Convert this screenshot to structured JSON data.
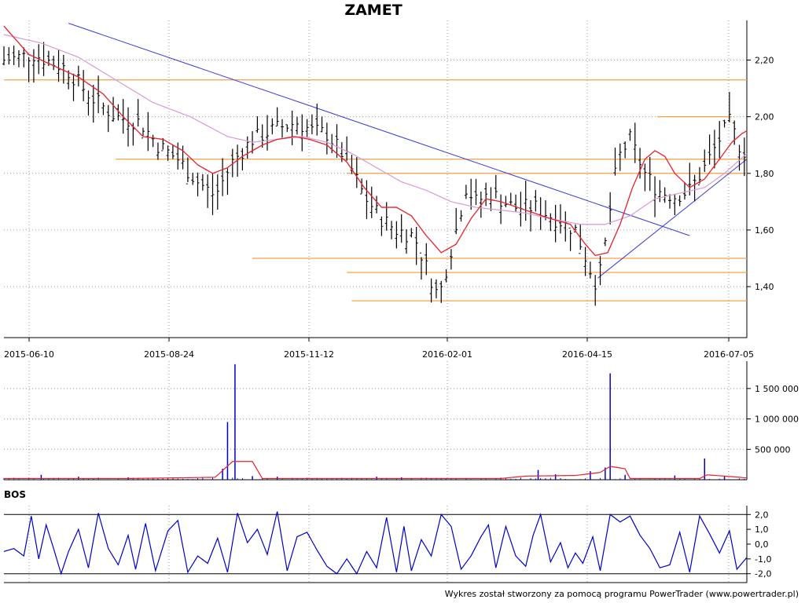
{
  "title": "ZAMET",
  "credit": "Wykres został stworzony za pomocą programu PowerTrader (www.powertrader.pl)",
  "colors": {
    "candle": "#000000",
    "ma_short": "#e8202a",
    "ma_long": "#d79ad7",
    "trend": "#3b3bdb",
    "support": "#f5a04a",
    "volume": "#0000cc",
    "volume_avg": "#e8202a",
    "bos": "#0000cc",
    "grid": "#999999"
  },
  "chart_data": [
    {
      "name": "price",
      "type": "bar",
      "title": "ZAMET",
      "x_tick_labels": [
        "2015-06-10",
        "2015-08-24",
        "2015-11-12",
        "2016-02-01",
        "2016-04-15",
        "2016-07-05"
      ],
      "y_tick_labels": [
        "1,40",
        "1,60",
        "1,80",
        "2,00",
        "2,20"
      ],
      "ylim": [
        1.22,
        2.34
      ],
      "grid": true,
      "series": [
        {
          "name": "close",
          "keypoints": [
            [
              0,
              2.2
            ],
            [
              12,
              2.22
            ],
            [
              25,
              2.17
            ],
            [
              35,
              2.07
            ],
            [
              45,
              2.0
            ],
            [
              55,
              1.98
            ],
            [
              62,
              1.9
            ],
            [
              70,
              1.85
            ],
            [
              78,
              1.77
            ],
            [
              85,
              1.72
            ],
            [
              92,
              1.84
            ],
            [
              100,
              1.92
            ],
            [
              110,
              1.96
            ],
            [
              118,
              1.98
            ],
            [
              124,
              1.95
            ],
            [
              130,
              1.94
            ],
            [
              138,
              1.85
            ],
            [
              145,
              1.72
            ],
            [
              152,
              1.64
            ],
            [
              158,
              1.6
            ],
            [
              165,
              1.58
            ],
            [
              170,
              1.47
            ],
            [
              175,
              1.36
            ],
            [
              182,
              1.6
            ],
            [
              186,
              1.75
            ],
            [
              190,
              1.7
            ],
            [
              196,
              1.73
            ],
            [
              205,
              1.68
            ],
            [
              214,
              1.68
            ],
            [
              222,
              1.64
            ],
            [
              230,
              1.6
            ],
            [
              236,
              1.46
            ],
            [
              239,
              1.4
            ],
            [
              242,
              1.55
            ],
            [
              247,
              1.85
            ],
            [
              252,
              1.92
            ],
            [
              258,
              1.8
            ],
            [
              263,
              1.74
            ],
            [
              270,
              1.72
            ],
            [
              276,
              1.74
            ],
            [
              282,
              1.82
            ],
            [
              288,
              1.92
            ],
            [
              292,
              1.98
            ],
            [
              296,
              1.9
            ],
            [
              299,
              1.87
            ]
          ]
        },
        {
          "name": "ma_short",
          "keypoints": [
            [
              0,
              2.32
            ],
            [
              10,
              2.22
            ],
            [
              20,
              2.18
            ],
            [
              30,
              2.14
            ],
            [
              40,
              2.08
            ],
            [
              48,
              2.0
            ],
            [
              56,
              1.93
            ],
            [
              64,
              1.92
            ],
            [
              72,
              1.88
            ],
            [
              78,
              1.83
            ],
            [
              84,
              1.8
            ],
            [
              90,
              1.82
            ],
            [
              96,
              1.86
            ],
            [
              104,
              1.9
            ],
            [
              110,
              1.92
            ],
            [
              117,
              1.93
            ],
            [
              123,
              1.92
            ],
            [
              130,
              1.9
            ],
            [
              138,
              1.84
            ],
            [
              145,
              1.75
            ],
            [
              152,
              1.68
            ],
            [
              158,
              1.68
            ],
            [
              164,
              1.65
            ],
            [
              170,
              1.58
            ],
            [
              176,
              1.52
            ],
            [
              182,
              1.55
            ],
            [
              188,
              1.64
            ],
            [
              194,
              1.71
            ],
            [
              200,
              1.7
            ],
            [
              210,
              1.67
            ],
            [
              220,
              1.64
            ],
            [
              228,
              1.62
            ],
            [
              234,
              1.55
            ],
            [
              238,
              1.51
            ],
            [
              243,
              1.52
            ],
            [
              248,
              1.62
            ],
            [
              253,
              1.75
            ],
            [
              258,
              1.85
            ],
            [
              262,
              1.88
            ],
            [
              266,
              1.86
            ],
            [
              270,
              1.8
            ],
            [
              276,
              1.75
            ],
            [
              282,
              1.78
            ],
            [
              288,
              1.85
            ],
            [
              293,
              1.91
            ],
            [
              297,
              1.94
            ],
            [
              299,
              1.95
            ]
          ]
        },
        {
          "name": "ma_long",
          "keypoints": [
            [
              0,
              2.29
            ],
            [
              15,
              2.26
            ],
            [
              30,
              2.21
            ],
            [
              45,
              2.13
            ],
            [
              60,
              2.05
            ],
            [
              75,
              2.0
            ],
            [
              90,
              1.93
            ],
            [
              100,
              1.91
            ],
            [
              110,
              1.92
            ],
            [
              120,
              1.93
            ],
            [
              130,
              1.91
            ],
            [
              140,
              1.87
            ],
            [
              150,
              1.82
            ],
            [
              160,
              1.77
            ],
            [
              170,
              1.74
            ],
            [
              180,
              1.7
            ],
            [
              190,
              1.68
            ],
            [
              200,
              1.67
            ],
            [
              210,
              1.66
            ],
            [
              220,
              1.64
            ],
            [
              232,
              1.62
            ],
            [
              242,
              1.62
            ],
            [
              252,
              1.65
            ],
            [
              262,
              1.71
            ],
            [
              272,
              1.73
            ],
            [
              282,
              1.75
            ],
            [
              290,
              1.8
            ],
            [
              299,
              1.87
            ]
          ]
        }
      ],
      "trendlines": [
        {
          "x": [
            26,
            276
          ],
          "y": [
            2.33,
            1.58
          ]
        },
        {
          "x": [
            239,
            299
          ],
          "y": [
            1.43,
            1.85
          ]
        }
      ],
      "support_resistance": [
        {
          "x": [
            0,
            299
          ],
          "y": 2.13
        },
        {
          "x": [
            45,
            299
          ],
          "y": 1.85
        },
        {
          "x": [
            138,
            299
          ],
          "y": 1.8
        },
        {
          "x": [
            100,
            299
          ],
          "y": 1.5
        },
        {
          "x": [
            138,
            299
          ],
          "y": 1.45
        },
        {
          "x": [
            140,
            299
          ],
          "y": 1.35
        },
        {
          "x": [
            263,
            293
          ],
          "y": 2.0
        }
      ]
    },
    {
      "name": "volume",
      "type": "bar",
      "y_tick_labels": [
        "500 000",
        "1 000 000",
        "1 500 000"
      ],
      "ylim": [
        0,
        1950000
      ],
      "grid": true,
      "spikes": [
        [
          15,
          80000
        ],
        [
          30,
          50000
        ],
        [
          50,
          40000
        ],
        [
          88,
          180000
        ],
        [
          90,
          950000
        ],
        [
          93,
          1900000
        ],
        [
          100,
          60000
        ],
        [
          110,
          50000
        ],
        [
          150,
          50000
        ],
        [
          160,
          40000
        ],
        [
          215,
          160000
        ],
        [
          222,
          90000
        ],
        [
          236,
          140000
        ],
        [
          242,
          200000
        ],
        [
          244,
          1750000
        ],
        [
          250,
          80000
        ],
        [
          270,
          70000
        ],
        [
          282,
          350000
        ],
        [
          290,
          60000
        ]
      ],
      "avg_keypoints": [
        [
          0,
          20000
        ],
        [
          50,
          20000
        ],
        [
          85,
          40000
        ],
        [
          92,
          300000
        ],
        [
          100,
          300000
        ],
        [
          104,
          20000
        ],
        [
          200,
          20000
        ],
        [
          210,
          60000
        ],
        [
          230,
          70000
        ],
        [
          240,
          120000
        ],
        [
          244,
          220000
        ],
        [
          250,
          180000
        ],
        [
          252,
          20000
        ],
        [
          280,
          20000
        ],
        [
          283,
          80000
        ],
        [
          290,
          60000
        ],
        [
          299,
          30000
        ]
      ]
    },
    {
      "name": "BOS",
      "type": "line",
      "title": "BOS",
      "y_tick_labels": [
        "2,0",
        "1,0",
        "0,0",
        "-1,0",
        "-2,0"
      ],
      "ylim": [
        -2.6,
        2.6
      ],
      "reference_lines": [
        2.0,
        -2.0
      ],
      "series": [
        {
          "name": "BOS",
          "keypoints": [
            [
              0,
              -0.5
            ],
            [
              4,
              -0.3
            ],
            [
              8,
              -0.8
            ],
            [
              11,
              1.9
            ],
            [
              14,
              -1.0
            ],
            [
              17,
              1.3
            ],
            [
              20,
              -0.3
            ],
            [
              23,
              -2.0
            ],
            [
              26,
              -0.5
            ],
            [
              30,
              1.0
            ],
            [
              34,
              -1.6
            ],
            [
              38,
              2.1
            ],
            [
              42,
              -0.3
            ],
            [
              46,
              -1.4
            ],
            [
              50,
              0.6
            ],
            [
              53,
              -1.7
            ],
            [
              57,
              1.4
            ],
            [
              61,
              -1.8
            ],
            [
              66,
              0.9
            ],
            [
              70,
              1.6
            ],
            [
              74,
              -1.9
            ],
            [
              78,
              -0.8
            ],
            [
              82,
              -1.3
            ],
            [
              86,
              0.4
            ],
            [
              90,
              -1.9
            ],
            [
              94,
              2.1
            ],
            [
              98,
              0.1
            ],
            [
              102,
              1.0
            ],
            [
              106,
              -0.7
            ],
            [
              110,
              2.2
            ],
            [
              114,
              -1.8
            ],
            [
              118,
              0.5
            ],
            [
              122,
              0.8
            ],
            [
              126,
              -0.4
            ],
            [
              130,
              -1.5
            ],
            [
              134,
              -2.0
            ],
            [
              138,
              -1.0
            ],
            [
              142,
              -2.0
            ],
            [
              146,
              -0.5
            ],
            [
              150,
              -1.6
            ],
            [
              154,
              1.8
            ],
            [
              158,
              -1.9
            ],
            [
              161,
              1.2
            ],
            [
              164,
              -1.8
            ],
            [
              168,
              0.3
            ],
            [
              172,
              -0.8
            ],
            [
              176,
              2.0
            ],
            [
              180,
              1.2
            ],
            [
              184,
              -1.7
            ],
            [
              188,
              -0.8
            ],
            [
              192,
              0.5
            ],
            [
              195,
              1.3
            ],
            [
              198,
              -1.6
            ],
            [
              202,
              1.2
            ],
            [
              206,
              -0.8
            ],
            [
              210,
              -1.5
            ],
            [
              213,
              0.6
            ],
            [
              216,
              2.0
            ],
            [
              220,
              -1.2
            ],
            [
              224,
              0.1
            ],
            [
              227,
              -1.6
            ],
            [
              230,
              -0.6
            ],
            [
              233,
              -1.3
            ],
            [
              237,
              0.5
            ],
            [
              240,
              -1.8
            ],
            [
              244,
              2.0
            ],
            [
              248,
              1.5
            ],
            [
              252,
              1.9
            ],
            [
              256,
              0.6
            ],
            [
              260,
              -0.3
            ],
            [
              264,
              -1.6
            ],
            [
              268,
              -1.4
            ],
            [
              272,
              0.8
            ],
            [
              276,
              -1.9
            ],
            [
              280,
              1.9
            ],
            [
              284,
              0.7
            ],
            [
              288,
              -0.6
            ],
            [
              292,
              0.9
            ],
            [
              295,
              -1.7
            ],
            [
              299,
              -0.9
            ]
          ]
        }
      ]
    }
  ]
}
